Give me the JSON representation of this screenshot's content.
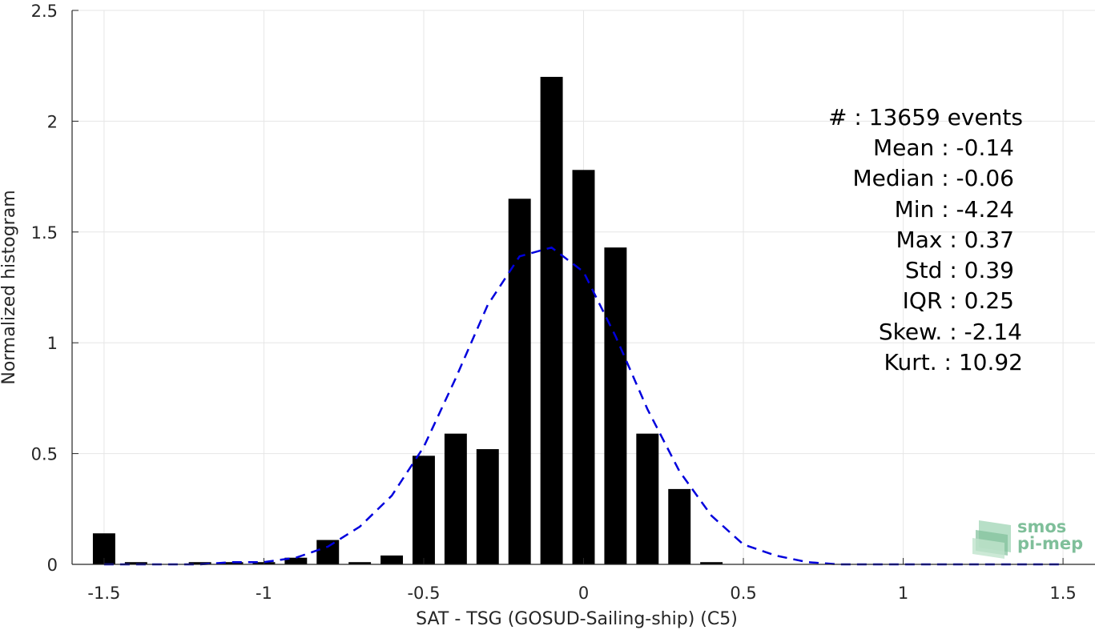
{
  "chart_data": {
    "type": "bar",
    "title": "",
    "xlabel": "SAT - TSG (GOSUD-Sailing-ship) (C5)",
    "ylabel": "Normalized histogram",
    "xlim": [
      -1.6,
      1.6
    ],
    "ylim": [
      0,
      2.5
    ],
    "xticks": [
      -1.5,
      -1,
      -0.5,
      0,
      0.5,
      1,
      1.5
    ],
    "xtick_labels": [
      "-1.5",
      "-1",
      "-0.5",
      "0",
      "0.5",
      "1",
      "1.5"
    ],
    "yticks": [
      0,
      0.5,
      1,
      1.5,
      2,
      2.5
    ],
    "ytick_labels": [
      "0",
      "0.5",
      "1",
      "1.5",
      "2",
      "2.5"
    ],
    "grid": true,
    "bar_width": 0.07,
    "bar_color": "#000000",
    "bars": [
      {
        "x": -1.5,
        "value": 0.14
      },
      {
        "x": -1.4,
        "value": 0.01
      },
      {
        "x": -1.2,
        "value": 0.01
      },
      {
        "x": -1.1,
        "value": 0.01
      },
      {
        "x": -1.0,
        "value": 0.01
      },
      {
        "x": -0.9,
        "value": 0.03
      },
      {
        "x": -0.8,
        "value": 0.11
      },
      {
        "x": -0.7,
        "value": 0.01
      },
      {
        "x": -0.6,
        "value": 0.04
      },
      {
        "x": -0.5,
        "value": 0.49
      },
      {
        "x": -0.4,
        "value": 0.59
      },
      {
        "x": -0.3,
        "value": 0.52
      },
      {
        "x": -0.2,
        "value": 1.65
      },
      {
        "x": -0.1,
        "value": 2.2
      },
      {
        "x": 0.0,
        "value": 1.78
      },
      {
        "x": 0.1,
        "value": 1.43
      },
      {
        "x": 0.2,
        "value": 0.59
      },
      {
        "x": 0.3,
        "value": 0.34
      },
      {
        "x": 0.4,
        "value": 0.01
      }
    ],
    "fit_curve": {
      "style": "dashed",
      "color": "#0000dd",
      "x": [
        -1.5,
        -1.4,
        -1.3,
        -1.2,
        -1.1,
        -1.0,
        -0.9,
        -0.8,
        -0.7,
        -0.6,
        -0.5,
        -0.4,
        -0.3,
        -0.2,
        -0.1,
        0.0,
        0.1,
        0.2,
        0.3,
        0.4,
        0.5,
        0.6,
        0.7,
        0.8,
        0.9,
        1.0,
        1.1,
        1.2,
        1.3,
        1.4,
        1.5
      ],
      "y": [
        0.0,
        0.0,
        0.0,
        0.0,
        0.01,
        0.01,
        0.03,
        0.08,
        0.17,
        0.31,
        0.53,
        0.84,
        1.17,
        1.39,
        1.43,
        1.32,
        1.03,
        0.7,
        0.42,
        0.22,
        0.09,
        0.04,
        0.01,
        0.0,
        0.0,
        0.0,
        0.0,
        0.0,
        0.0,
        0.0,
        0.0
      ]
    },
    "annotations": [
      "#  : 13659 events",
      "Mean : -0.14",
      "Median : -0.06",
      "Min : -4.24",
      "Max : 0.37",
      "Std : 0.39",
      "IQR : 0.25",
      "Skew. : -2.14",
      "Kurt. : 10.92"
    ]
  },
  "logo": {
    "line1": "smos",
    "line2": "pi-mep"
  }
}
